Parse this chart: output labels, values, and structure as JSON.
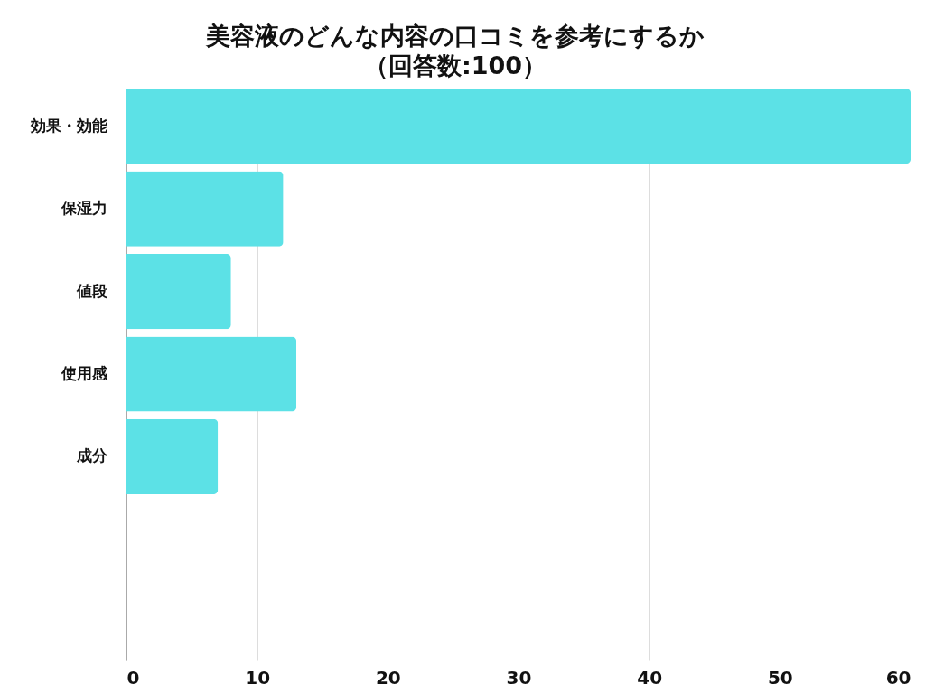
{
  "chart_data": {
    "type": "bar",
    "orientation": "horizontal",
    "title": "美容液のどんな内容の口コミを参考にするか",
    "subtitle": "（回答数:100）",
    "categories": [
      "効果・効能",
      "保湿力",
      "値段",
      "使用感",
      "成分",
      null,
      null
    ],
    "values": [
      60,
      12,
      8,
      13,
      7,
      null,
      null
    ],
    "color": "#5ce1e6",
    "xlim": [
      0,
      60
    ],
    "xticks": [
      0,
      10,
      20,
      30,
      40,
      50,
      60
    ],
    "grid": "x"
  }
}
